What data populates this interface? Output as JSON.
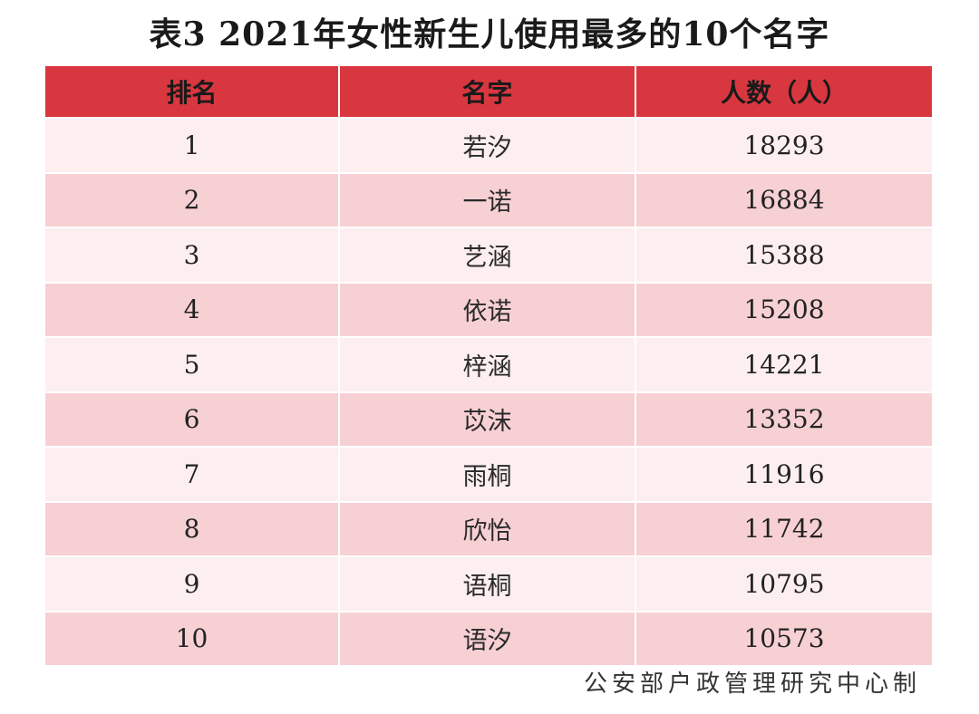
{
  "title": "表3  2021年女性新生儿使用最多的10个名字",
  "table": {
    "headers": [
      "排名",
      "名字",
      "人数（人）"
    ],
    "rows": [
      {
        "rank": "1",
        "name": "若汐",
        "count": "18293"
      },
      {
        "rank": "2",
        "name": "一诺",
        "count": "16884"
      },
      {
        "rank": "3",
        "name": "艺涵",
        "count": "15388"
      },
      {
        "rank": "4",
        "name": "依诺",
        "count": "15208"
      },
      {
        "rank": "5",
        "name": "梓涵",
        "count": "14221"
      },
      {
        "rank": "6",
        "name": "苡沫",
        "count": "13352"
      },
      {
        "rank": "7",
        "name": "雨桐",
        "count": "11916"
      },
      {
        "rank": "8",
        "name": "欣怡",
        "count": "11742"
      },
      {
        "rank": "9",
        "name": "语桐",
        "count": "10795"
      },
      {
        "rank": "10",
        "name": "语汐",
        "count": "10573"
      }
    ]
  },
  "source": "公安部户政管理研究中心制",
  "colors": {
    "header_bg": "#d9373f",
    "row_light": "#fdeff0",
    "row_dark": "#f7d0d4"
  }
}
